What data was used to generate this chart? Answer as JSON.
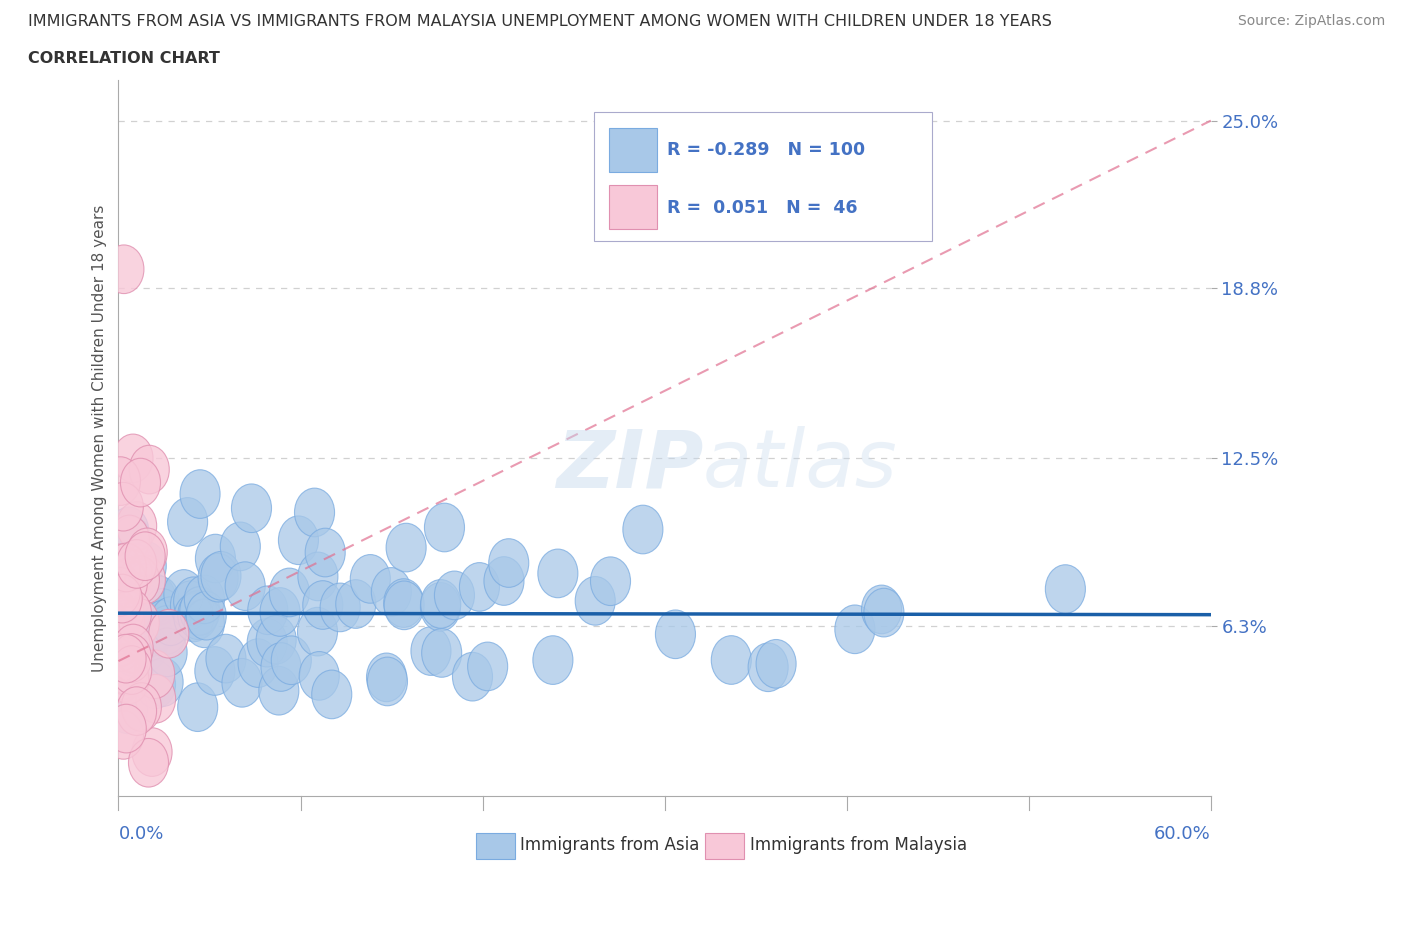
{
  "title_line1": "IMMIGRANTS FROM ASIA VS IMMIGRANTS FROM MALAYSIA UNEMPLOYMENT AMONG WOMEN WITH CHILDREN UNDER 18 YEARS",
  "title_line2": "CORRELATION CHART",
  "source": "Source: ZipAtlas.com",
  "ylabel": "Unemployment Among Women with Children Under 18 years",
  "xlim": [
    0.0,
    0.6
  ],
  "ylim": [
    0.0,
    0.265
  ],
  "ytick_vals": [
    0.063,
    0.125,
    0.188,
    0.25
  ],
  "ytick_labels": [
    "6.3%",
    "12.5%",
    "18.8%",
    "25.0%"
  ],
  "legend_asia": "Immigrants from Asia",
  "legend_malaysia": "Immigrants from Malaysia",
  "R_asia": -0.289,
  "N_asia": 100,
  "R_malaysia": 0.051,
  "N_malaysia": 46,
  "asia_color": "#a8c8e8",
  "asia_edge_color": "#7aabe0",
  "asia_line_color": "#1a5fa8",
  "malaysia_color": "#f8c8d8",
  "malaysia_edge_color": "#e090b0",
  "malaysia_line_color": "#e07090",
  "watermark1": "ZIP",
  "watermark2": "atlas",
  "background_color": "#ffffff",
  "grid_color": "#cccccc",
  "title_color": "#333333",
  "ytick_color": "#4472c4",
  "legend_text_color": "#4472c4",
  "source_color": "#888888"
}
